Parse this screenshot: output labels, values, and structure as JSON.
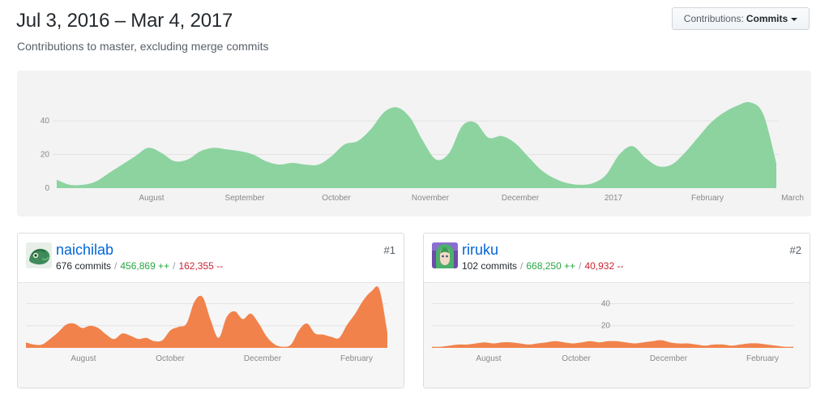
{
  "header": {
    "range_title": "Jul 3, 2016 – Mar 4, 2017",
    "subtitle": "Contributions to master, excluding merge commits",
    "dropdown_prefix": "Contributions:",
    "dropdown_value": "Commits"
  },
  "main_chart": {
    "type": "area",
    "color": "#8cd3a0",
    "ylim": [
      0,
      55
    ],
    "y_ticks": [
      "0",
      "20",
      "40"
    ],
    "x_ticks": [
      "August",
      "September",
      "October",
      "November",
      "December",
      "2017",
      "February",
      "March"
    ],
    "values": [
      5,
      2,
      2,
      4,
      9,
      14,
      19,
      24,
      21,
      16,
      17,
      22,
      24,
      23,
      22,
      20,
      16,
      14,
      15,
      14,
      14,
      19,
      26,
      28,
      35,
      45,
      48,
      42,
      28,
      17,
      21,
      37,
      39,
      30,
      31,
      27,
      19,
      11,
      6,
      3,
      2,
      3,
      8,
      20,
      25,
      18,
      13,
      14,
      21,
      30,
      39,
      45,
      49,
      51,
      44,
      15
    ]
  },
  "contributors": [
    {
      "username": "naichilab",
      "rank": "#1",
      "commits": "676 commits",
      "additions": "456,869 ++",
      "deletions": "162,355 --",
      "chart": {
        "type": "area",
        "color": "#f1824b",
        "ylim": [
          0,
          55
        ],
        "y_ticks": [],
        "x_ticks": [
          "August",
          "October",
          "December",
          "February"
        ],
        "values": [
          5,
          3,
          3,
          8,
          14,
          21,
          22,
          18,
          20,
          18,
          12,
          8,
          13,
          11,
          8,
          9,
          6,
          7,
          16,
          19,
          22,
          42,
          46,
          25,
          9,
          28,
          33,
          26,
          31,
          22,
          10,
          3,
          1,
          3,
          16,
          22,
          13,
          12,
          10,
          9,
          21,
          31,
          43,
          51,
          53,
          14
        ]
      }
    },
    {
      "username": "riruku",
      "rank": "#2",
      "commits": "102 commits",
      "additions": "668,250 ++",
      "deletions": "40,932 --",
      "chart": {
        "type": "area",
        "color": "#f1824b",
        "ylim": [
          0,
          55
        ],
        "y_ticks": [
          "20",
          "40"
        ],
        "x_ticks": [
          "August",
          "October",
          "December",
          "February"
        ],
        "values": [
          1,
          1,
          2,
          3,
          3,
          4,
          5,
          4,
          5,
          5,
          4,
          3,
          4,
          5,
          6,
          5,
          4,
          5,
          6,
          5,
          6,
          6,
          5,
          4,
          5,
          6,
          7,
          5,
          4,
          4,
          3,
          2,
          3,
          3,
          2,
          3,
          4,
          4,
          3,
          2,
          1,
          1
        ]
      }
    }
  ]
}
